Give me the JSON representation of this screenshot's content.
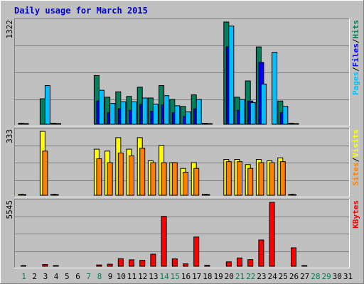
{
  "chart_data": {
    "type": "bar",
    "title": "Daily usage for March 2015",
    "days": [
      "1",
      "2",
      "3",
      "4",
      "5",
      "6",
      "7",
      "8",
      "9",
      "10",
      "11",
      "12",
      "13",
      "14",
      "15",
      "16",
      "17",
      "18",
      "19",
      "20",
      "21",
      "22",
      "23",
      "24",
      "25",
      "26",
      "27",
      "28",
      "29",
      "30",
      "31"
    ],
    "weekend_days": [
      1,
      7,
      8,
      14,
      15,
      21,
      22,
      28,
      29
    ],
    "colors": {
      "background": "#c0c0c0",
      "title": "#0000cc",
      "hits": "#00805c",
      "files": "#0000ff",
      "pages": "#00c0ff",
      "visits": "#ffff00",
      "sites": "#ff8000",
      "kbytes": "#ff0000",
      "weekday_label": "#000000",
      "weekend_label": "#00805c"
    },
    "panels": [
      {
        "name": "hits-files-pages",
        "max_label": "1322",
        "ymax": 1322,
        "legend": [
          {
            "label": "Pages",
            "color": "#00c0ff"
          },
          {
            "label": "/",
            "color": "#000000"
          },
          {
            "label": "Files",
            "color": "#0000ff"
          },
          {
            "label": "/",
            "color": "#000000"
          },
          {
            "label": "Hits",
            "color": "#00805c"
          }
        ],
        "series": [
          {
            "name": "Hits",
            "color": "#00805c",
            "values": [
              13,
              0,
              330,
              13,
              0,
              0,
              0,
              630,
              350,
              420,
              360,
              480,
              340,
              500,
              320,
              230,
              380,
              13,
              0,
              1322,
              350,
              560,
              1000,
              0,
              300,
              13,
              0,
              0,
              0,
              0,
              0
            ]
          },
          {
            "name": "Files",
            "color": "#0000ff",
            "values": [
              8,
              0,
              0,
              8,
              0,
              0,
              0,
              300,
              150,
              200,
              180,
              260,
              170,
              250,
              150,
              100,
              200,
              8,
              0,
              1000,
              180,
              300,
              800,
              0,
              150,
              8,
              0,
              0,
              0,
              0,
              0
            ]
          },
          {
            "name": "Pages",
            "color": "#00c0ff",
            "values": [
              5,
              0,
              500,
              5,
              0,
              0,
              0,
              440,
              270,
              290,
              290,
              340,
              260,
              370,
              240,
              160,
              320,
              5,
              0,
              1270,
              320,
              280,
              520,
              930,
              230,
              5,
              0,
              0,
              0,
              0,
              0
            ]
          }
        ]
      },
      {
        "name": "visits-sites",
        "max_label": "333",
        "ymax": 333,
        "legend": [
          {
            "label": "Sites",
            "color": "#ff8000"
          },
          {
            "label": "/",
            "color": "#000000"
          },
          {
            "label": "Visits",
            "color": "#ffff00"
          }
        ],
        "series": [
          {
            "name": "Visits",
            "color": "#ffff00",
            "values": [
              5,
              0,
              333,
              5,
              0,
              0,
              0,
              240,
              230,
              300,
              240,
              300,
              180,
              260,
              170,
              140,
              170,
              5,
              0,
              187,
              187,
              160,
              187,
              180,
              195,
              5,
              0,
              0,
              0,
              0,
              0
            ]
          },
          {
            "name": "Sites",
            "color": "#ff8000",
            "values": [
              3,
              0,
              230,
              3,
              0,
              0,
              0,
              190,
              170,
              220,
              205,
              245,
              170,
              170,
              170,
              120,
              140,
              3,
              0,
              175,
              175,
              140,
              170,
              170,
              175,
              3,
              0,
              0,
              0,
              0,
              0
            ]
          }
        ]
      },
      {
        "name": "kbytes",
        "max_label": "5545",
        "ymax": 5545,
        "legend": [
          {
            "label": "KBytes",
            "color": "#ff0000"
          }
        ],
        "series": [
          {
            "name": "KBytes",
            "color": "#ff0000",
            "values": [
              50,
              0,
              150,
              50,
              0,
              0,
              0,
              110,
              180,
              650,
              560,
              510,
              1050,
              4330,
              640,
              210,
              2540,
              80,
              0,
              380,
              720,
              570,
              2280,
              5545,
              0,
              1600,
              60,
              0,
              0,
              0,
              0
            ]
          }
        ]
      }
    ]
  }
}
